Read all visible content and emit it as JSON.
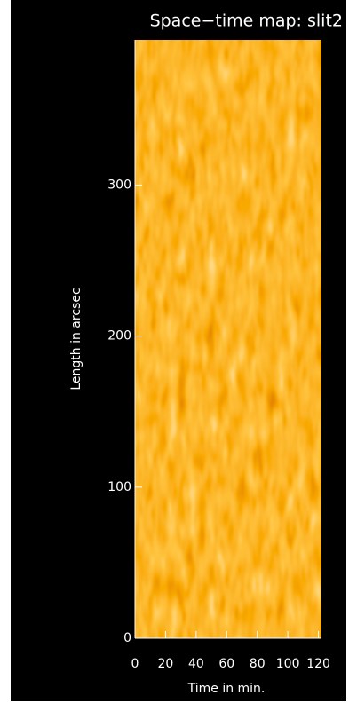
{
  "chart_data": {
    "type": "heatmap",
    "title": "Space−time map: slit2",
    "x_label": "Time in min.",
    "y_label": "Length in arcsec",
    "xlim": [
      0,
      122
    ],
    "ylim": [
      0,
      396
    ],
    "xticks": [
      0,
      20,
      40,
      60,
      80,
      100,
      120
    ],
    "yticks": [
      0,
      100,
      200,
      300
    ]
  }
}
